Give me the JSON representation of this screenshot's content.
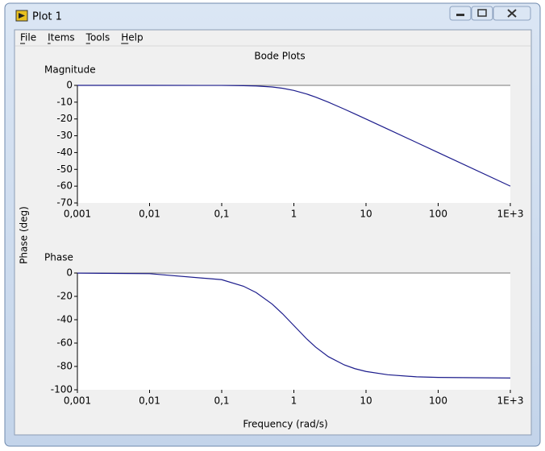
{
  "window": {
    "title": "Plot 1"
  },
  "menu": [
    "File",
    "Items",
    "Tools",
    "Help"
  ],
  "figure_title": "Bode Plots",
  "chart_data": [
    {
      "type": "line",
      "title": "Magnitude",
      "xscale": "log",
      "color": "#1c1c8c",
      "x": [
        0.001,
        0.01,
        0.1,
        0.2,
        0.3,
        0.5,
        0.7,
        1,
        1.5,
        2,
        3,
        5,
        7,
        10,
        20,
        50,
        100,
        1000
      ],
      "values": [
        0,
        0,
        -0.04,
        -0.17,
        -0.37,
        -0.97,
        -1.74,
        -3.01,
        -5.12,
        -6.99,
        -10,
        -14.15,
        -17,
        -20.04,
        -26.03,
        -33.98,
        -40,
        -60
      ],
      "xlim": [
        0.001,
        1000
      ],
      "xticks": [
        {
          "value": 0.001,
          "label": "0,001"
        },
        {
          "value": 0.01,
          "label": "0,01"
        },
        {
          "value": 0.1,
          "label": "0,1"
        },
        1,
        10,
        100,
        {
          "value": 1000,
          "label": "1E+3"
        }
      ],
      "ylim": [
        -70,
        0
      ],
      "yticks": [
        0,
        -10,
        -20,
        -30,
        -40,
        -50,
        -60,
        -70
      ]
    },
    {
      "type": "line",
      "title": "Phase",
      "xscale": "log",
      "color": "#1c1c8c",
      "ylabel": "Phase (deg)",
      "xlabel": "Frequency (rad/s)",
      "x": [
        0.001,
        0.01,
        0.1,
        0.2,
        0.3,
        0.5,
        0.7,
        1,
        1.5,
        2,
        3,
        5,
        7,
        10,
        20,
        50,
        100,
        1000
      ],
      "values": [
        -0.06,
        -0.57,
        -5.71,
        -11.3,
        -16.7,
        -26.6,
        -35,
        -45,
        -56.3,
        -63.4,
        -71.6,
        -78.7,
        -81.9,
        -84.3,
        -87.1,
        -88.9,
        -89.4,
        -89.9
      ],
      "xlim": [
        0.001,
        1000
      ],
      "xticks": [
        {
          "value": 0.001,
          "label": "0,001"
        },
        {
          "value": 0.01,
          "label": "0,01"
        },
        {
          "value": 0.1,
          "label": "0,1"
        },
        1,
        10,
        100,
        {
          "value": 1000,
          "label": "1E+3"
        }
      ],
      "ylim": [
        -100,
        0
      ],
      "yticks": [
        0,
        -20,
        -40,
        -60,
        -80,
        -100
      ]
    }
  ]
}
